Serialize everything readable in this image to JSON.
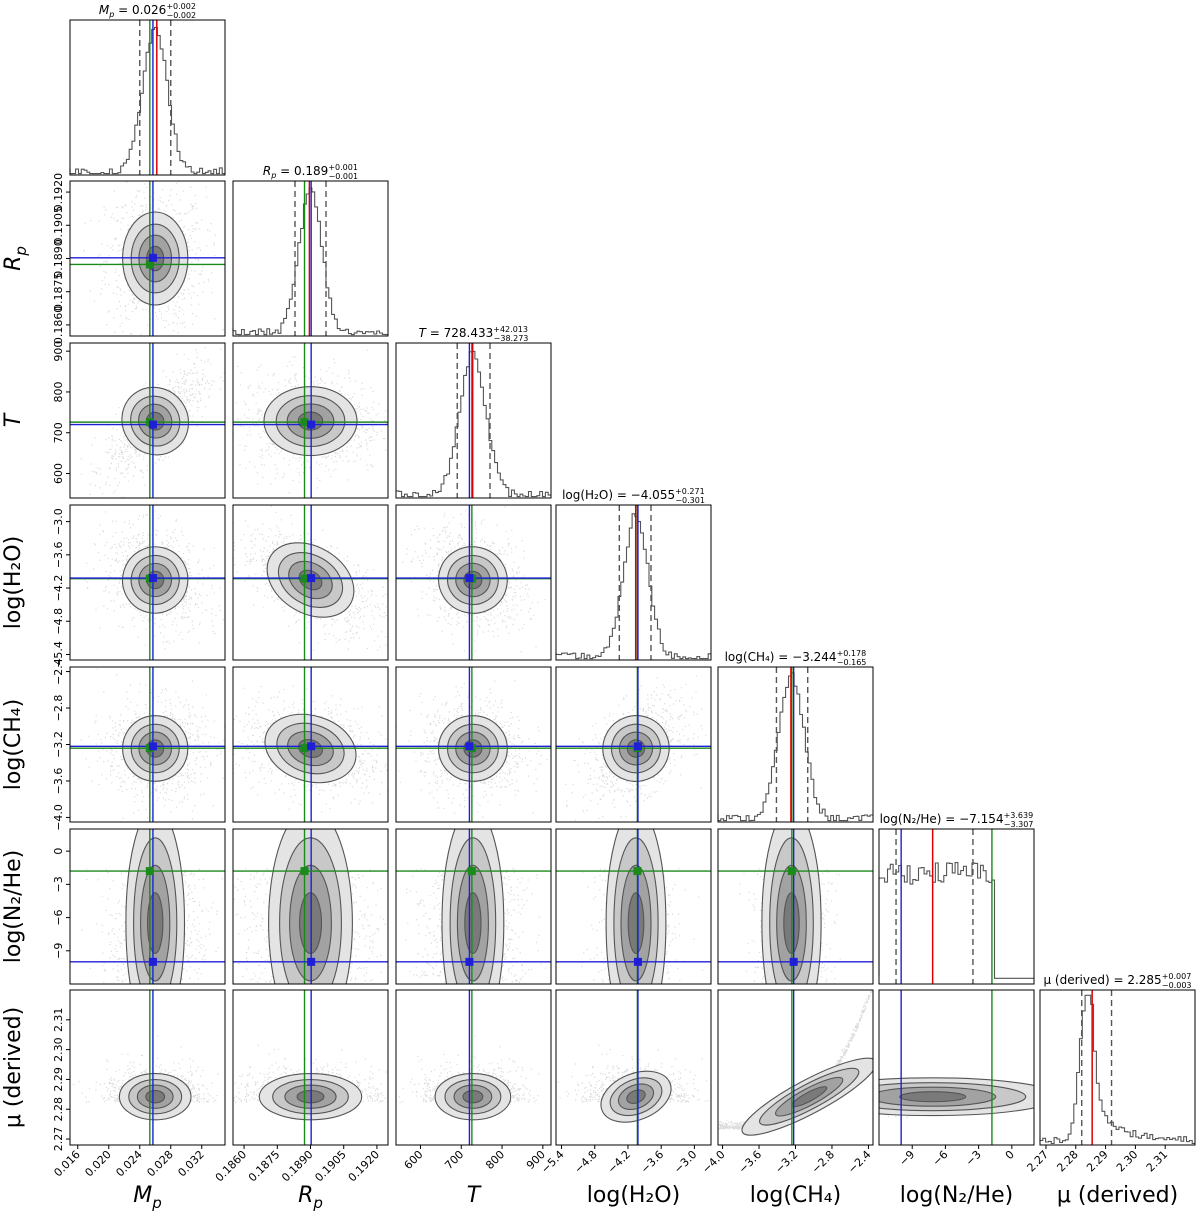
{
  "chart_data": {
    "type": "corner",
    "parameters": [
      {
        "key": "Mp",
        "label": "M_p",
        "range": [
          0.015,
          0.035
        ],
        "ticks": [
          0.016,
          0.02,
          0.024,
          0.028,
          0.032
        ],
        "tick_labels": [
          "0.016",
          "0.020",
          "0.024",
          "0.028",
          "0.032"
        ],
        "median": 0.026,
        "plus": 0.002,
        "minus": 0.002,
        "title_value": "0.026",
        "title_plus": "+0.002",
        "title_minus": "−0.002",
        "q_lo": 0.024,
        "q_hi": 0.028,
        "hist_width": 0.0016,
        "truth_blue": 0.0257,
        "truth_green": 0.0253,
        "truth_red": 0.0262
      },
      {
        "key": "Rp",
        "label": "R_p",
        "range": [
          0.1855,
          0.1925
        ],
        "ticks": [
          0.186,
          0.1875,
          0.189,
          0.1905,
          0.192
        ],
        "tick_labels": [
          "0.1860",
          "0.1875",
          "0.1890",
          "0.1905",
          "0.1920"
        ],
        "median": 0.189,
        "plus": 0.001,
        "minus": 0.001,
        "title_value": "0.189",
        "title_plus": "+0.001",
        "title_minus": "−0.001",
        "q_lo": 0.1883,
        "q_hi": 0.1897,
        "hist_width": 0.00052,
        "truth_blue": 0.18903,
        "truth_green": 0.18873,
        "truth_red": 0.18895
      },
      {
        "key": "T",
        "label": "T",
        "range": [
          540,
          920
        ],
        "ticks": [
          600,
          700,
          800,
          900
        ],
        "tick_labels": [
          "600",
          "700",
          "800",
          "900"
        ],
        "median": 728.433,
        "plus": 42.013,
        "minus": 38.273,
        "title_value": "728.433",
        "title_plus": "+42.013",
        "title_minus": "−38.273",
        "q_lo": 690.16,
        "q_hi": 770.45,
        "hist_width": 32,
        "truth_blue": 720,
        "truth_green": 726,
        "truth_red": 728
      },
      {
        "key": "H2O",
        "label": "log(H₂O)",
        "range": [
          -5.5,
          -2.7
        ],
        "ticks": [
          -5.4,
          -4.8,
          -4.2,
          -3.6,
          -3.0
        ],
        "tick_labels": [
          "−5.4",
          "−4.8",
          "−4.2",
          "−3.6",
          "−3.0"
        ],
        "median": -4.055,
        "plus": 0.271,
        "minus": 0.301,
        "title_value": "−4.055",
        "title_plus": "+0.271",
        "title_minus": "−0.301",
        "q_lo": -4.356,
        "q_hi": -3.784,
        "hist_width": 0.22,
        "truth_blue": -4.02,
        "truth_green": -4.03,
        "truth_red": -4.06
      },
      {
        "key": "CH4",
        "label": "log(CH₄)",
        "range": [
          -4.05,
          -2.35
        ],
        "ticks": [
          -4.0,
          -3.6,
          -3.2,
          -2.8,
          -2.4
        ],
        "tick_labels": [
          "−4.0",
          "−3.6",
          "−3.2",
          "−2.8",
          "−2.4"
        ],
        "median": -3.244,
        "plus": 0.178,
        "minus": 0.165,
        "title_value": "−3.244",
        "title_plus": "+0.178",
        "title_minus": "−0.165",
        "q_lo": -3.409,
        "q_hi": -3.066,
        "hist_width": 0.14,
        "truth_blue": -3.22,
        "truth_green": -3.24,
        "truth_red": -3.25
      },
      {
        "key": "N2He",
        "label": "log(N₂/He)",
        "range": [
          -12,
          2
        ],
        "ticks": [
          -9,
          -6,
          -3,
          0
        ],
        "tick_labels": [
          "−9",
          "−6",
          "−3",
          "0"
        ],
        "median": -7.154,
        "plus": 3.639,
        "minus": 3.307,
        "title_value": "−7.154",
        "title_plus": "+3.639",
        "title_minus": "−3.307",
        "q_lo": -10.461,
        "q_hi": -3.515,
        "hist_width": null,
        "truth_blue": -10.0,
        "truth_green": -1.8,
        "truth_red": -7.154
      },
      {
        "key": "mu",
        "label": "μ (derived)",
        "range": [
          2.268,
          2.32
        ],
        "ticks": [
          2.27,
          2.28,
          2.29,
          2.3,
          2.31
        ],
        "tick_labels": [
          "2.27",
          "2.28",
          "2.29",
          "2.30",
          "2.31"
        ],
        "median": 2.285,
        "plus": 0.007,
        "minus": 0.003,
        "title_value": "2.285",
        "title_plus": "+0.007",
        "title_minus": "−0.003",
        "q_lo": 2.282,
        "q_hi": 2.292,
        "hist_width": null,
        "truth_blue": null,
        "truth_green": null,
        "truth_red": 2.2855
      }
    ],
    "titles": [
      "Mp = 0.026 +0.002 −0.002",
      "Rp = 0.189 +0.001 −0.001",
      "T = 728.433 +42.013 −38.273",
      "log(H2O) = −4.055 +0.271 −0.301",
      "log(CH4) = −3.244 +0.178 −0.165",
      "log(N2/He) = −7.154 +3.639 −3.307",
      "μ (derived) = 2.285 +0.007 −0.003"
    ],
    "colors": {
      "median": "#e00000",
      "truth_blue": "#1f1fd6",
      "truth_green": "#1a8a1a",
      "contour": "#555555",
      "hist": "#555555",
      "quantile": "#555555"
    }
  }
}
